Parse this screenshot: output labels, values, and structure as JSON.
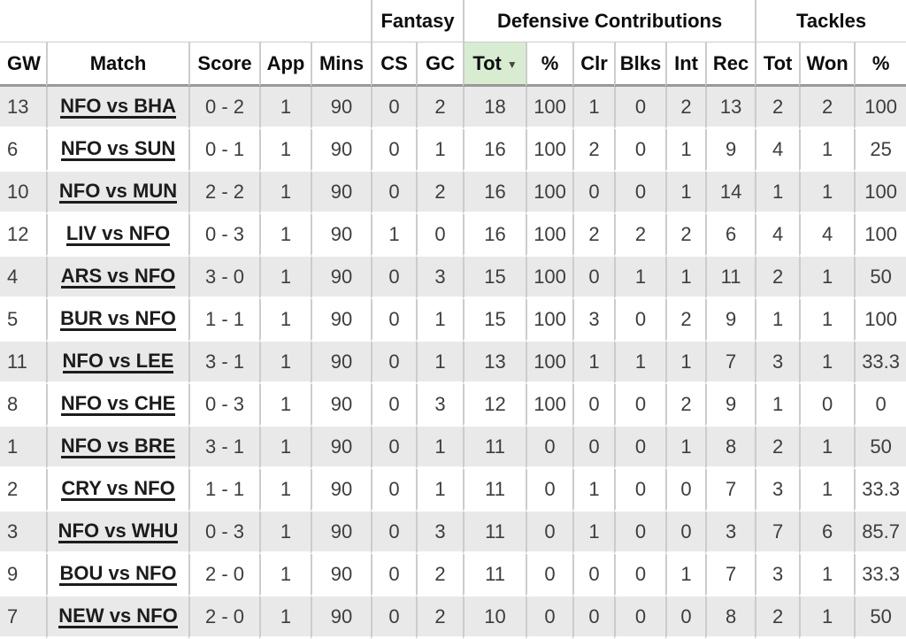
{
  "colors": {
    "sorted_column_bg": "#d8ecd2",
    "striped_row_bg": "#e9e9e9",
    "grid_line": "#cccccc",
    "header_rule": "#999999"
  },
  "header_groups": [
    {
      "label": "",
      "span": 5
    },
    {
      "label": "Fantasy",
      "span": 2
    },
    {
      "label": "Defensive Contributions",
      "span": 6
    },
    {
      "label": "Tackles",
      "span": 3
    }
  ],
  "columns": [
    {
      "key": "gw",
      "label": "GW"
    },
    {
      "key": "match",
      "label": "Match"
    },
    {
      "key": "score",
      "label": "Score"
    },
    {
      "key": "app",
      "label": "App"
    },
    {
      "key": "mins",
      "label": "Mins"
    },
    {
      "key": "cs",
      "label": "CS"
    },
    {
      "key": "gc",
      "label": "GC"
    },
    {
      "key": "dc-tot",
      "label": "Tot",
      "sorted": true,
      "sort_icon": "▼"
    },
    {
      "key": "dc-pct",
      "label": "%"
    },
    {
      "key": "clr",
      "label": "Clr"
    },
    {
      "key": "blks",
      "label": "Blks"
    },
    {
      "key": "int",
      "label": "Int"
    },
    {
      "key": "rec",
      "label": "Rec"
    },
    {
      "key": "tk-tot",
      "label": "Tot"
    },
    {
      "key": "tk-won",
      "label": "Won"
    },
    {
      "key": "tk-pct",
      "label": "%"
    }
  ],
  "rows": [
    {
      "cells": [
        "13",
        "NFO vs BHA",
        "0 - 2",
        "1",
        "90",
        "0",
        "2",
        "18",
        "100",
        "1",
        "0",
        "2",
        "13",
        "2",
        "2",
        "100"
      ]
    },
    {
      "cells": [
        "6",
        "NFO vs SUN",
        "0 - 1",
        "1",
        "90",
        "0",
        "1",
        "16",
        "100",
        "2",
        "0",
        "1",
        "9",
        "4",
        "1",
        "25"
      ]
    },
    {
      "cells": [
        "10",
        "NFO vs MUN",
        "2 - 2",
        "1",
        "90",
        "0",
        "2",
        "16",
        "100",
        "0",
        "0",
        "1",
        "14",
        "1",
        "1",
        "100"
      ]
    },
    {
      "cells": [
        "12",
        "LIV vs NFO",
        "0 - 3",
        "1",
        "90",
        "1",
        "0",
        "16",
        "100",
        "2",
        "2",
        "2",
        "6",
        "4",
        "4",
        "100"
      ]
    },
    {
      "cells": [
        "4",
        "ARS vs NFO",
        "3 - 0",
        "1",
        "90",
        "0",
        "3",
        "15",
        "100",
        "0",
        "1",
        "1",
        "11",
        "2",
        "1",
        "50"
      ]
    },
    {
      "cells": [
        "5",
        "BUR vs NFO",
        "1 - 1",
        "1",
        "90",
        "0",
        "1",
        "15",
        "100",
        "3",
        "0",
        "2",
        "9",
        "1",
        "1",
        "100"
      ]
    },
    {
      "cells": [
        "11",
        "NFO vs LEE",
        "3 - 1",
        "1",
        "90",
        "0",
        "1",
        "13",
        "100",
        "1",
        "1",
        "1",
        "7",
        "3",
        "1",
        "33.3"
      ]
    },
    {
      "cells": [
        "8",
        "NFO vs CHE",
        "0 - 3",
        "1",
        "90",
        "0",
        "3",
        "12",
        "100",
        "0",
        "0",
        "2",
        "9",
        "1",
        "0",
        "0"
      ]
    },
    {
      "cells": [
        "1",
        "NFO vs BRE",
        "3 - 1",
        "1",
        "90",
        "0",
        "1",
        "11",
        "0",
        "0",
        "0",
        "1",
        "8",
        "2",
        "1",
        "50"
      ]
    },
    {
      "cells": [
        "2",
        "CRY vs NFO",
        "1 - 1",
        "1",
        "90",
        "0",
        "1",
        "11",
        "0",
        "1",
        "0",
        "0",
        "7",
        "3",
        "1",
        "33.3"
      ]
    },
    {
      "cells": [
        "3",
        "NFO vs WHU",
        "0 - 3",
        "1",
        "90",
        "0",
        "3",
        "11",
        "0",
        "1",
        "0",
        "0",
        "3",
        "7",
        "6",
        "85.7"
      ]
    },
    {
      "cells": [
        "9",
        "BOU vs NFO",
        "2 - 0",
        "1",
        "90",
        "0",
        "2",
        "11",
        "0",
        "0",
        "0",
        "1",
        "7",
        "3",
        "1",
        "33.3"
      ]
    },
    {
      "cells": [
        "7",
        "NEW vs NFO",
        "2 - 0",
        "1",
        "90",
        "0",
        "2",
        "10",
        "0",
        "0",
        "0",
        "0",
        "8",
        "2",
        "1",
        "50"
      ]
    }
  ]
}
